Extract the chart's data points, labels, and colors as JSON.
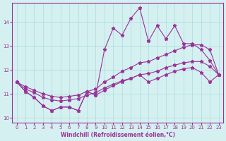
{
  "x": [
    0,
    1,
    2,
    3,
    4,
    5,
    6,
    7,
    8,
    9,
    10,
    11,
    12,
    13,
    14,
    15,
    16,
    17,
    18,
    19,
    20,
    21,
    22,
    23
  ],
  "line_jagged": [
    11.5,
    11.1,
    10.85,
    10.5,
    10.3,
    10.45,
    10.45,
    10.3,
    11.1,
    10.95,
    12.85,
    13.75,
    13.45,
    14.15,
    14.6,
    13.2,
    13.85,
    13.3,
    13.85,
    13.1,
    13.1,
    12.85,
    12.4,
    11.8
  ],
  "line_upper_straight": [
    11.5,
    11.3,
    11.15,
    11.0,
    10.9,
    10.85,
    10.9,
    10.95,
    11.1,
    11.2,
    11.5,
    11.7,
    11.95,
    12.1,
    12.3,
    12.35,
    12.5,
    12.65,
    12.8,
    12.95,
    13.05,
    13.05,
    12.85,
    11.8
  ],
  "line_lower_straight": [
    11.5,
    11.2,
    11.05,
    10.85,
    10.75,
    10.7,
    10.75,
    10.8,
    10.95,
    11.05,
    11.25,
    11.4,
    11.55,
    11.65,
    11.8,
    11.85,
    11.95,
    12.1,
    12.2,
    12.3,
    12.35,
    12.35,
    12.15,
    11.8
  ],
  "line_bottom": [
    11.5,
    11.1,
    10.85,
    10.5,
    10.3,
    10.45,
    10.45,
    10.3,
    11.1,
    10.95,
    11.15,
    11.35,
    11.5,
    11.65,
    11.8,
    11.5,
    11.65,
    11.8,
    11.95,
    12.05,
    12.1,
    11.9,
    11.5,
    11.8
  ],
  "color": "#993399",
  "bg_color": "#d5f0f0",
  "grid_color": "#aadddd",
  "xlabel": "Windchill (Refroidissement éolien,°C)",
  "ylim": [
    9.8,
    14.8
  ],
  "xlim": [
    -0.5,
    23.5
  ],
  "yticks": [
    10,
    11,
    12,
    13,
    14
  ],
  "xticks": [
    0,
    1,
    2,
    3,
    4,
    5,
    6,
    7,
    8,
    9,
    10,
    11,
    12,
    13,
    14,
    15,
    16,
    17,
    18,
    19,
    20,
    21,
    22,
    23
  ]
}
